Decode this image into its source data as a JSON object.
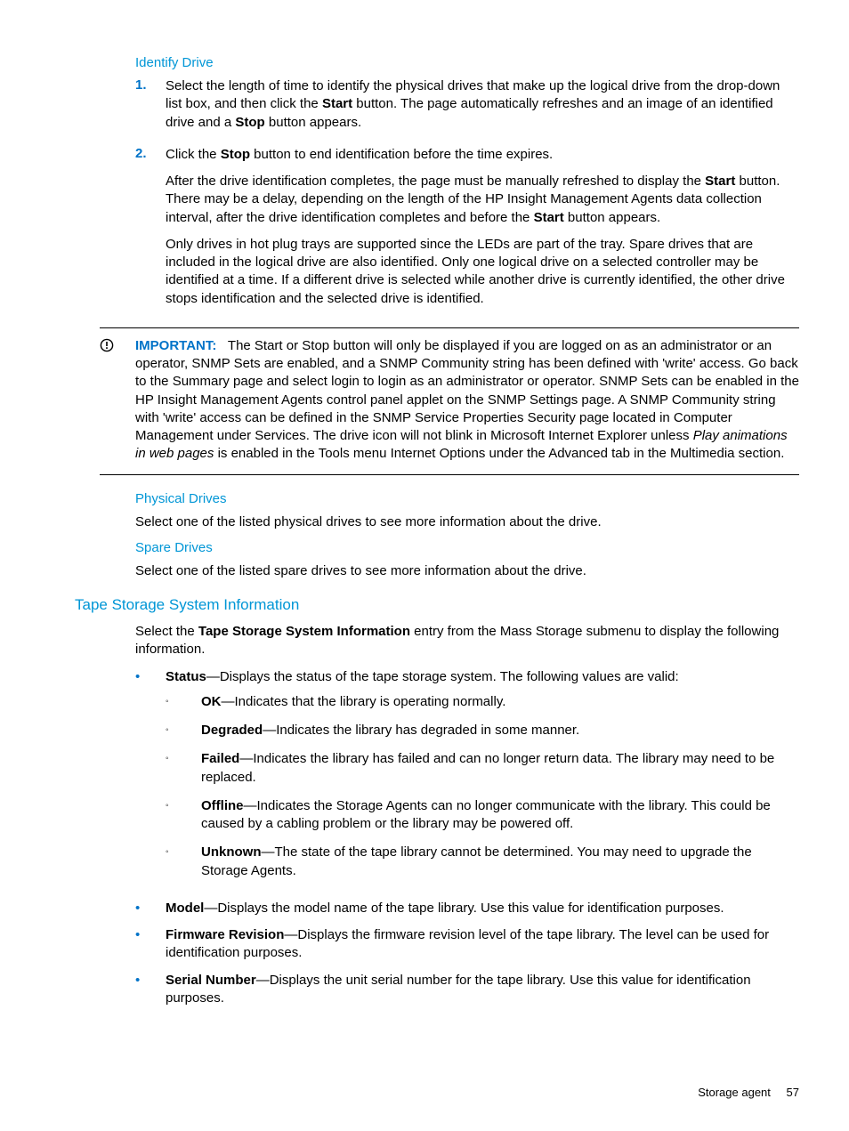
{
  "colors": {
    "link": "#0096d6",
    "accent": "#0073c8",
    "text": "#000000",
    "bg": "#ffffff",
    "rule": "#000000"
  },
  "identify": {
    "heading": "Identify Drive",
    "steps": [
      {
        "num": "1.",
        "paras": [
          "Select the length of time to identify the physical drives that make up the logical drive from the drop-down list box, and then click the <b>Start</b> button. The page automatically refreshes and an image of an identified drive and a <b>Stop</b> button appears."
        ]
      },
      {
        "num": "2.",
        "paras": [
          "Click the <b>Stop</b> button to end identification before the time expires.",
          "After the drive identification completes, the page must be manually refreshed to display the <b>Start</b> button. There may be a delay, depending on the length of the HP Insight Management Agents data collection interval, after the drive identification completes and before the <b>Start</b> button appears.",
          "Only drives in hot plug trays are supported since the LEDs are part of the tray. Spare drives that are included in the logical drive are also identified. Only one logical drive on a selected controller may be identified at a time. If a different drive is selected while another drive is currently identified, the other drive stops identification and the selected drive is identified."
        ]
      }
    ]
  },
  "important": {
    "label": "IMPORTANT:",
    "text": "The Start or Stop button will only be displayed if you are logged on as an administrator or an operator, SNMP Sets are enabled, and a SNMP Community string has been defined with 'write' access. Go back to the Summary page and select login to login as an administrator or operator. SNMP Sets can be enabled in the HP Insight Management Agents control panel applet on the SNMP Settings page. A SNMP Community string with 'write' access can be defined in the SNMP Service Properties Security page located in Computer Management under Services. The drive icon will not blink in Microsoft Internet Explorer unless <i>Play animations in web pages</i> is enabled in the Tools menu Internet Options under the Advanced tab in the Multimedia section."
  },
  "physical": {
    "heading": "Physical Drives",
    "text": "Select one of the listed physical drives to see more information about the drive."
  },
  "spare": {
    "heading": "Spare Drives",
    "text": "Select one of the listed spare drives to see more information about the drive."
  },
  "tape": {
    "heading": "Tape Storage System Information",
    "intro": "Select the <b>Tape Storage System Information</b> entry from the Mass Storage submenu to display the following information.",
    "items": [
      {
        "html": "<b>Status</b>—Displays the status of the tape storage system. The following values are valid:",
        "sub": [
          "<b>OK</b>—Indicates that the library is operating normally.",
          "<b>Degraded</b>—Indicates the library has degraded in some manner.",
          "<b>Failed</b>—Indicates the library has failed and can no longer return data. The library may need to be replaced.",
          "<b>Offline</b>—Indicates the Storage Agents can no longer communicate with the library. This could be caused by a cabling problem or the library may be powered off.",
          "<b>Unknown</b>—The state of the tape library cannot be determined. You may need to upgrade the Storage Agents."
        ]
      },
      {
        "html": "<b>Model</b>—Displays the model name of the tape library. Use this value for identification purposes."
      },
      {
        "html": "<b>Firmware Revision</b>—Displays the firmware revision level of the tape library. The level can be used for identification purposes."
      },
      {
        "html": "<b>Serial Number</b>—Displays the unit serial number for the tape library. Use this value for identification purposes."
      }
    ]
  },
  "footer": {
    "section": "Storage agent",
    "page": "57"
  }
}
